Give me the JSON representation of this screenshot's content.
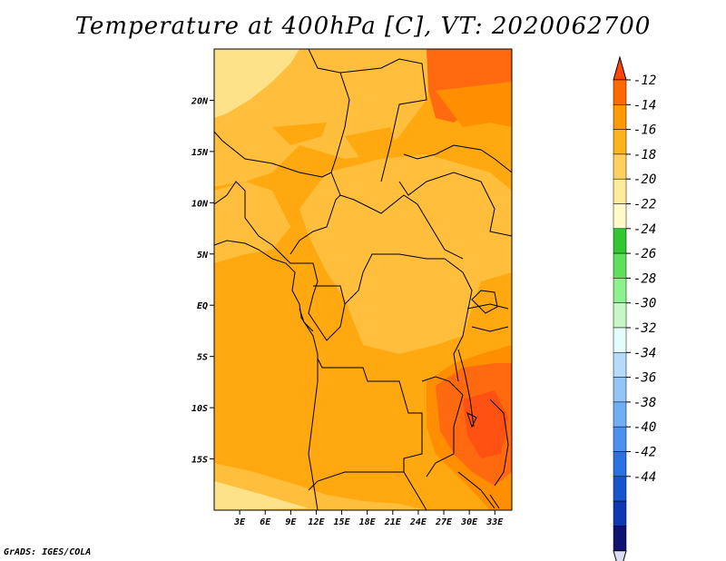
{
  "title": "Temperature at 400hPa [C], VT: 2020062700",
  "credit": "GrADS: IGES/COLA",
  "map": {
    "lon_range": [
      0,
      35
    ],
    "lat_range": [
      -20,
      25
    ],
    "lat_ticks": [
      {
        "value": 20,
        "label": "20N"
      },
      {
        "value": 15,
        "label": "15N"
      },
      {
        "value": 10,
        "label": "10N"
      },
      {
        "value": 5,
        "label": "5N"
      },
      {
        "value": 0,
        "label": "EQ"
      },
      {
        "value": -5,
        "label": "5S"
      },
      {
        "value": -10,
        "label": "10S"
      },
      {
        "value": -15,
        "label": "15S"
      }
    ],
    "lon_ticks": [
      {
        "value": 3,
        "label": "3E"
      },
      {
        "value": 6,
        "label": "6E"
      },
      {
        "value": 9,
        "label": "9E"
      },
      {
        "value": 12,
        "label": "12E"
      },
      {
        "value": 15,
        "label": "15E"
      },
      {
        "value": 18,
        "label": "18E"
      },
      {
        "value": 21,
        "label": "21E"
      },
      {
        "value": 24,
        "label": "24E"
      },
      {
        "value": 27,
        "label": "27E"
      },
      {
        "value": 30,
        "label": "30E"
      },
      {
        "value": 33,
        "label": "33E"
      }
    ]
  },
  "colorbar": {
    "labels": [
      "-12",
      "-14",
      "-16",
      "-18",
      "-20",
      "-22",
      "-24",
      "-26",
      "-28",
      "-30",
      "-32",
      "-34",
      "-36",
      "-38",
      "-40",
      "-42",
      "-44"
    ],
    "colors": [
      "#ff4500",
      "#ff6a00",
      "#ff9a00",
      "#ffb21e",
      "#ffd060",
      "#ffec9a",
      "#fffac8",
      "#33c633",
      "#5ee05e",
      "#8df28d",
      "#c7f7c7",
      "#e4fcfc",
      "#b4dcfa",
      "#93c6f7",
      "#70aff3",
      "#4b91ed",
      "#2a72e2",
      "#1755cc",
      "#0d3ab2",
      "#10136e",
      "#dcdcf5"
    ]
  },
  "field_colors": {
    "pale": "#fde28a",
    "light": "#ffbf3c",
    "mid": "#ffa810",
    "dark": "#ff8e00",
    "hot": "#ff6a10",
    "hotter": "#ff5212"
  }
}
